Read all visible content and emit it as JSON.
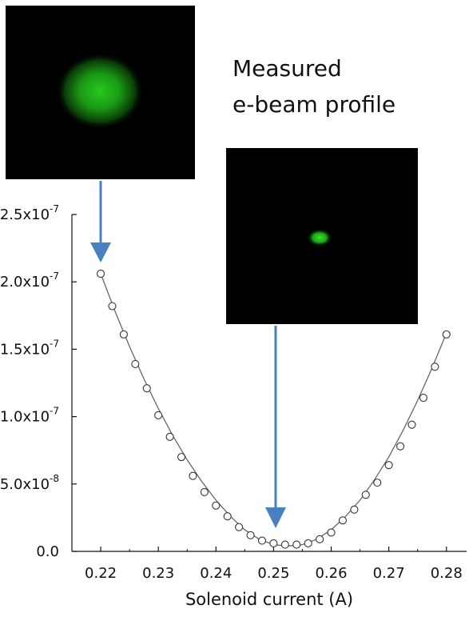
{
  "chart_data": {
    "type": "scatter",
    "xlabel": "Solenoid current (A)",
    "ylabel": "",
    "x_ticks": [
      "0.22",
      "0.23",
      "0.24",
      "0.25",
      "0.26",
      "0.27",
      "0.28"
    ],
    "y_ticks": [
      "0.0",
      "5.0x10-8",
      "1.0x10-7",
      "1.5x10-7",
      "2.0x10-7",
      "2.5x10-7"
    ],
    "xlim": [
      0.215,
      0.2835
    ],
    "ylim": [
      0,
      2.5e-07
    ],
    "grid": false,
    "series": [
      {
        "marker": "open-circle",
        "x": [
          0.22,
          0.222,
          0.224,
          0.226,
          0.228,
          0.23,
          0.232,
          0.234,
          0.236,
          0.238,
          0.24,
          0.242,
          0.244,
          0.246,
          0.248,
          0.25,
          0.252,
          0.254,
          0.256,
          0.258,
          0.26,
          0.262,
          0.264,
          0.266,
          0.268,
          0.27,
          0.272,
          0.274,
          0.276,
          0.278,
          0.28
        ],
        "y": [
          2.06e-07,
          1.82e-07,
          1.61e-07,
          1.39e-07,
          1.21e-07,
          1.01e-07,
          8.5e-08,
          7e-08,
          5.6e-08,
          4.4e-08,
          3.4e-08,
          2.6e-08,
          1.8e-08,
          1.2e-08,
          8e-09,
          6e-09,
          5e-09,
          5e-09,
          6e-09,
          9e-09,
          1.4e-08,
          2.3e-08,
          3.1e-08,
          4.2e-08,
          5.1e-08,
          6.4e-08,
          7.8e-08,
          9.4e-08,
          1.14e-07,
          1.37e-07,
          1.61e-07
        ]
      },
      {
        "marker": "fit-line",
        "x": [
          0.22,
          0.2225,
          0.225,
          0.2275,
          0.23,
          0.2325,
          0.235,
          0.2375,
          0.24,
          0.2425,
          0.245,
          0.2475,
          0.25,
          0.2525,
          0.255,
          0.2575,
          0.26,
          0.2625,
          0.265,
          0.2675,
          0.27,
          0.2725,
          0.275,
          0.2775,
          0.28
        ],
        "y": [
          2.06e-07,
          1.78e-07,
          1.52e-07,
          1.28e-07,
          1.06e-07,
          8.6e-08,
          6.8e-08,
          5.2e-08,
          3.8e-08,
          2.6e-08,
          1.6e-08,
          9e-09,
          5e-09,
          4e-09,
          5e-09,
          9e-09,
          1.6e-08,
          2.6e-08,
          3.8e-08,
          5.3e-08,
          7e-08,
          9e-08,
          1.12e-07,
          1.36e-07,
          1.62e-07
        ]
      }
    ],
    "annotation": [
      "Measured",
      "e-beam profile"
    ],
    "insets": [
      {
        "name": "large-spot",
        "points_to_x": 0.22
      },
      {
        "name": "focused-spot",
        "points_to_x": 0.2525
      }
    ],
    "colors": {
      "marker": "#333333",
      "fit": "#666666",
      "arrow": "#4a7fc1",
      "beam": "#22c01e"
    }
  }
}
